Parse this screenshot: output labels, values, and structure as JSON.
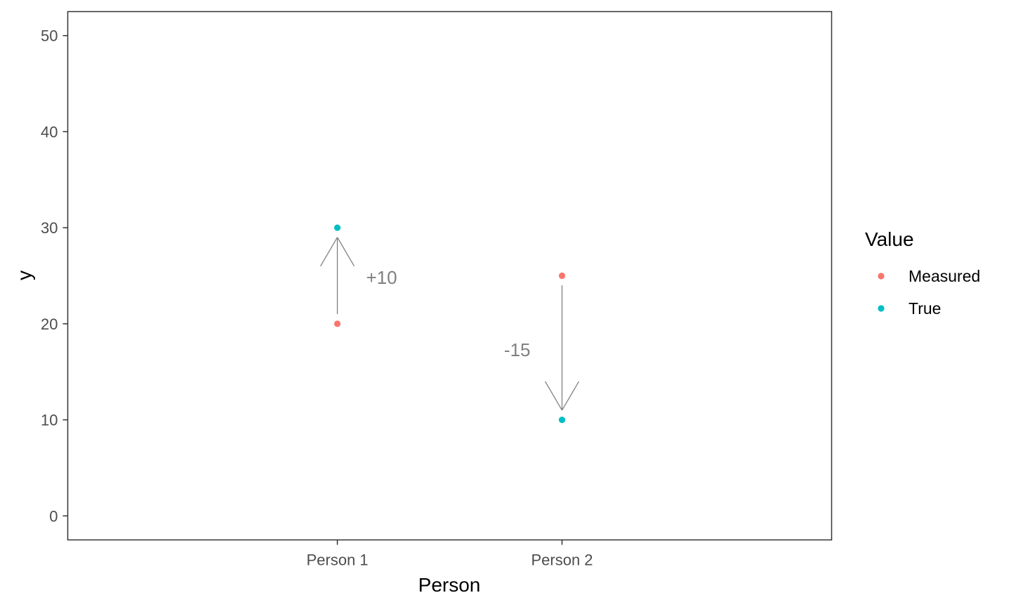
{
  "chart_data": {
    "type": "scatter",
    "xlabel": "Person",
    "ylabel": "y",
    "categories": [
      "Person 1",
      "Person 2"
    ],
    "ylim": [
      -2.5,
      52.5
    ],
    "yticks": [
      0,
      10,
      20,
      30,
      40,
      50
    ],
    "grid": false,
    "legend": {
      "title": "Value",
      "placement": "right"
    },
    "series": [
      {
        "name": "Measured",
        "color": "#F8766D",
        "values": [
          20,
          25
        ]
      },
      {
        "name": "True",
        "color": "#00BFC4",
        "values": [
          30,
          10
        ]
      }
    ],
    "arrows": [
      {
        "category": "Person 1",
        "from": 21,
        "to": 29,
        "label": "+10",
        "label_y": 24.8
      },
      {
        "category": "Person 2",
        "from": 24,
        "to": 11,
        "label": "-15",
        "label_y": 17.3
      }
    ],
    "annotation_color": "#808080",
    "panel_border_color": "#333333"
  }
}
